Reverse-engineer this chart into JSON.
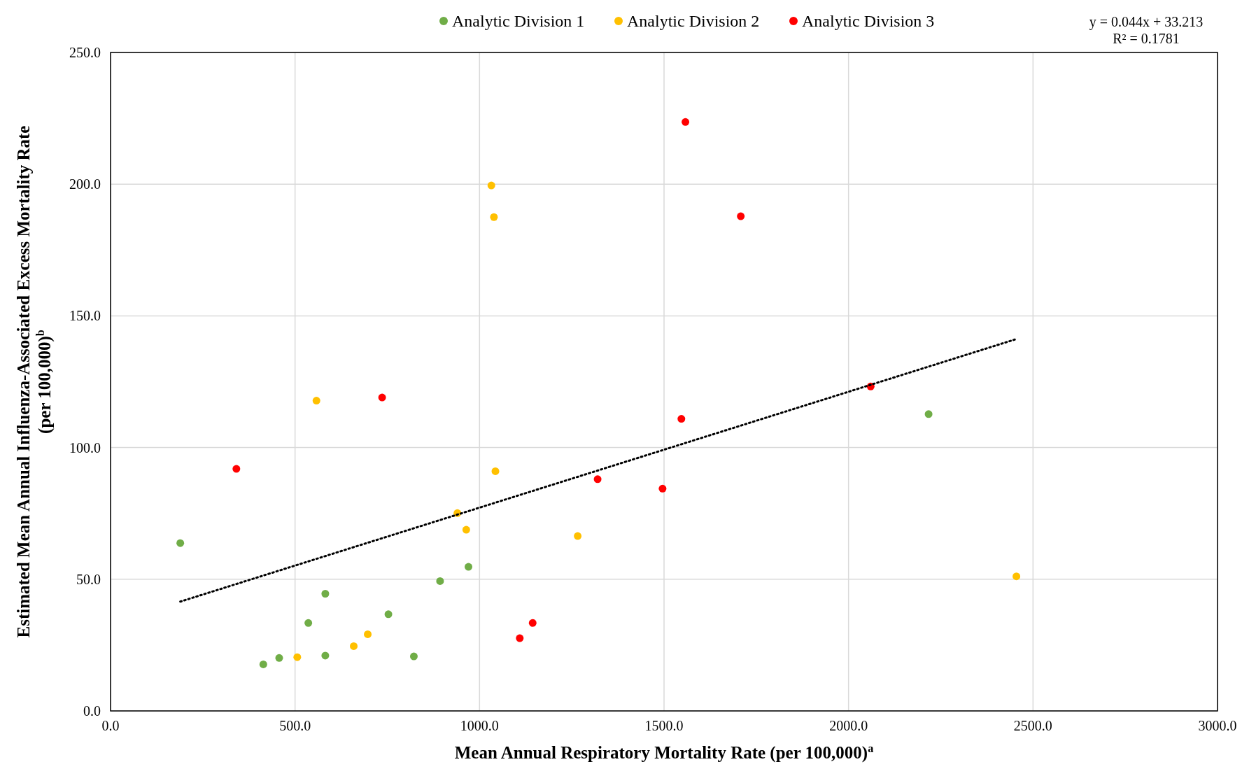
{
  "chart_data": {
    "type": "scatter",
    "xlabel": "Mean Annual Respiratory Mortality Rate (per 100,000)$^{a}$",
    "ylabel": "Estimated Mean Annual Influenza-Associated Excess Mortality Rate (per 100,000)$^{b}$",
    "xlim": [
      0,
      3000
    ],
    "ylim": [
      0,
      250
    ],
    "xticks": [
      {
        "value": 0,
        "label": "0.0"
      },
      {
        "value": 500,
        "label": "500.0"
      },
      {
        "value": 1000,
        "label": "1000.0"
      },
      {
        "value": 1500,
        "label": "1500.0"
      },
      {
        "value": 2000,
        "label": "2000.0"
      },
      {
        "value": 2500,
        "label": "2500.0"
      },
      {
        "value": 3000,
        "label": "3000.0"
      }
    ],
    "yticks": [
      {
        "value": 0,
        "label": "0.0"
      },
      {
        "value": 50,
        "label": "50.0"
      },
      {
        "value": 100,
        "label": "100.0"
      },
      {
        "value": 150,
        "label": "150.0"
      },
      {
        "value": 200,
        "label": "200.0"
      },
      {
        "value": 250,
        "label": "250.0"
      }
    ],
    "grid": true,
    "legend": "top",
    "marker": "circle",
    "series": [
      {
        "name": "Analytic Division 1",
        "color": "#70ad47",
        "x": [
          189,
          414,
          457,
          536,
          582,
          582,
          753,
          822,
          893,
          970,
          2217
        ],
        "values": [
          63.7,
          17.7,
          20.1,
          33.4,
          44.5,
          21.0,
          36.7,
          20.7,
          49.3,
          54.7,
          112.7
        ]
      },
      {
        "name": "Analytic Division 2",
        "color": "#ffc000",
        "x": [
          506,
          558,
          659,
          697,
          940,
          964,
          1032,
          1039,
          1043,
          1266,
          2455
        ],
        "values": [
          20.4,
          117.8,
          24.6,
          29.1,
          75.1,
          68.8,
          199.5,
          187.5,
          91.0,
          66.4,
          51.1
        ]
      },
      {
        "name": "Analytic Division 3",
        "color": "#ff0000",
        "x": [
          341,
          736,
          1109,
          1144,
          1320,
          1496,
          1547,
          1558,
          1708,
          2060
        ],
        "values": [
          91.9,
          119.0,
          27.6,
          33.4,
          88.0,
          84.4,
          110.9,
          223.6,
          187.8,
          123.2
        ]
      },
      {
        "type": "line",
        "color": "#000000",
        "line_style": "dotted",
        "marker": "none",
        "x": [
          189,
          2455
        ],
        "values": [
          41.5,
          141.2
        ]
      }
    ],
    "annotations": [
      "y = 0.044x + 33.213",
      "R² = 0.1781"
    ]
  }
}
